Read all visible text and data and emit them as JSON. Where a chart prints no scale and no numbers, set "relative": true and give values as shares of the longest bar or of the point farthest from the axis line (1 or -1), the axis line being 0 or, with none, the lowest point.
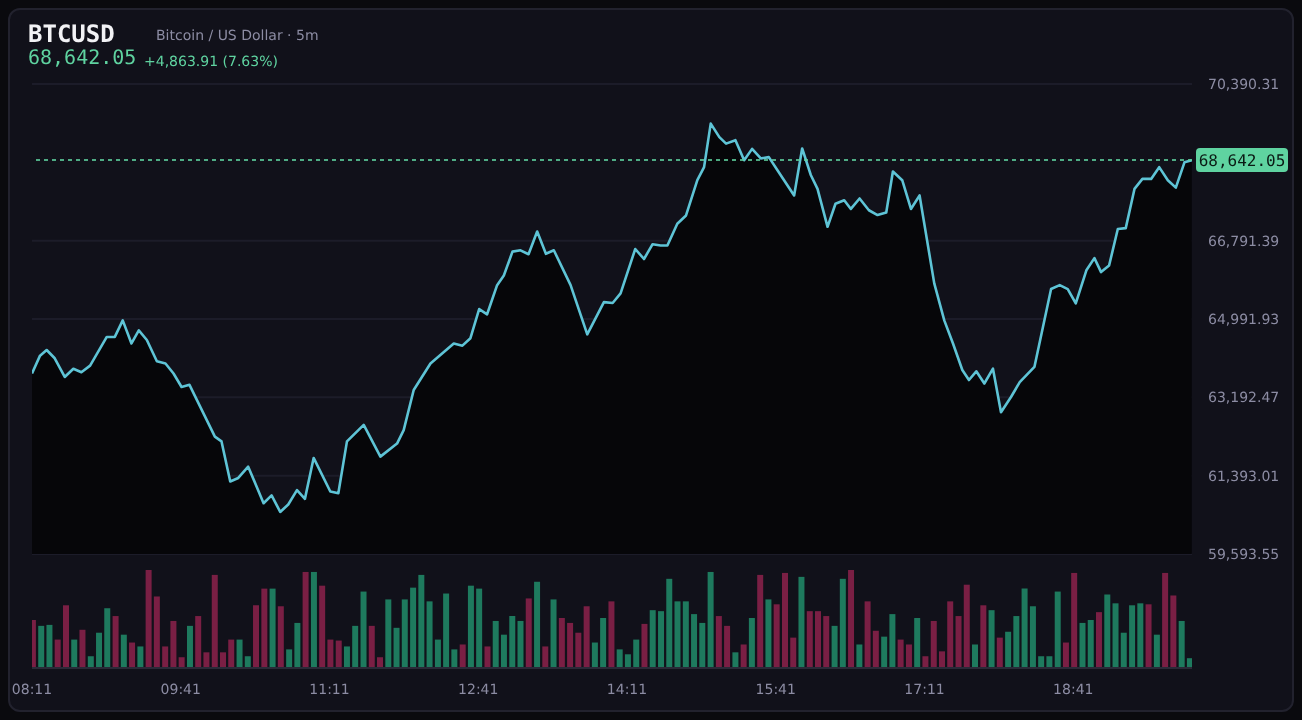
{
  "chart_data": [
    {
      "type": "area",
      "title": "BTCUSD",
      "subtitle": "Bitcoin / US Dollar · 5m",
      "annotations": [
        "68,642.05",
        "+4,863.91 (7.63%)"
      ],
      "x": [
        8.183,
        8.264,
        8.331,
        8.412,
        8.513,
        8.6,
        8.681,
        8.769,
        8.937,
        9.018,
        9.098,
        9.186,
        9.26,
        9.341,
        9.442,
        9.529,
        9.61,
        9.691,
        9.771,
        10.027,
        10.094,
        10.182,
        10.263,
        10.363,
        10.518,
        10.599,
        10.686,
        10.767,
        10.855,
        10.935,
        11.023,
        11.191,
        11.272,
        11.359,
        11.528,
        11.696,
        11.864,
        11.931,
        12.032,
        12.201,
        12.436,
        12.523,
        12.604,
        12.692,
        12.772,
        12.873,
        12.941,
        13.028,
        13.109,
        13.19,
        13.277,
        13.365,
        13.445,
        13.614,
        13.782,
        13.95,
        14.038,
        14.118,
        14.266,
        14.354,
        14.441,
        14.522,
        14.59,
        14.69,
        14.778,
        14.892,
        14.96,
        15.027,
        15.114,
        15.182,
        15.276,
        15.364,
        15.444,
        15.532,
        15.613,
        15.7,
        15.868,
        15.949,
        16.036,
        16.104,
        16.205,
        16.285,
        16.373,
        16.44,
        16.528,
        16.622,
        16.709,
        16.797,
        16.864,
        16.958,
        17.046,
        17.133,
        17.281,
        17.382,
        17.47,
        17.564,
        17.631,
        17.705,
        17.786,
        17.873,
        17.954,
        18.055,
        18.143,
        18.291,
        18.459,
        18.546,
        18.627,
        18.708,
        18.815,
        18.896,
        18.963,
        19.044,
        19.132,
        19.212,
        19.3,
        19.38,
        19.468,
        19.549,
        19.636,
        19.717,
        19.804,
        19.878
      ],
      "series": [
        {
          "color": "#5ec4d6",
          "values": [
            63740,
            64150,
            64280,
            64090,
            63660,
            63850,
            63770,
            63920,
            64580,
            64580,
            64960,
            64430,
            64730,
            64510,
            64020,
            63970,
            63740,
            63430,
            63480,
            62290,
            62180,
            61260,
            61340,
            61600,
            60760,
            60940,
            60560,
            60730,
            61060,
            60860,
            61800,
            61030,
            60990,
            62180,
            62560,
            61830,
            62130,
            62440,
            63360,
            63970,
            64430,
            64380,
            64550,
            65220,
            65100,
            65770,
            65990,
            66540,
            66570,
            66480,
            67000,
            66490,
            66570,
            65770,
            64640,
            65380,
            65360,
            65580,
            66600,
            66370,
            66710,
            66680,
            66680,
            67180,
            67370,
            68180,
            68480,
            69480,
            69170,
            69020,
            69100,
            68640,
            68900,
            68680,
            68710,
            68410,
            67830,
            68910,
            68300,
            67980,
            67110,
            67640,
            67720,
            67520,
            67760,
            67490,
            67380,
            67440,
            68380,
            68180,
            67520,
            67830,
            65810,
            64960,
            64430,
            63820,
            63590,
            63790,
            63510,
            63850,
            62850,
            63200,
            63540,
            63890,
            65680,
            65770,
            65680,
            65350,
            66110,
            66390,
            66070,
            66220,
            67060,
            67080,
            67980,
            68210,
            68210,
            68480,
            68180,
            68010,
            68590,
            68640
          ]
        }
      ],
      "xlim": [
        8.183,
        19.88
      ],
      "ylim": [
        59593.55,
        70390.31
      ],
      "yticks": [
        {
          "value": 59593.55,
          "label": "59,593.55"
        },
        {
          "value": 61393.01,
          "label": "61,393.01"
        },
        {
          "value": 63192.47,
          "label": "63,192.47"
        },
        {
          "value": 64991.93,
          "label": "64,991.93"
        },
        {
          "value": 66791.39,
          "label": "66,791.39"
        },
        {
          "value": 70390.31,
          "label": "70,390.31"
        }
      ],
      "ref_lines": [
        {
          "axis": "y",
          "value": 68642.05,
          "label": "68,642.05",
          "color": "#5fd3a0",
          "line_style": "dotted"
        }
      ],
      "grid": "y",
      "tick_labels": "y",
      "marker": "none"
    },
    {
      "type": "bar",
      "relative": true,
      "tick_labels": "x",
      "x": [
        8.183,
        8.267,
        8.35,
        8.433,
        8.517,
        8.6,
        8.683,
        8.767,
        8.85,
        8.933,
        9.017,
        9.1,
        9.183,
        9.267,
        9.35,
        9.433,
        9.517,
        9.6,
        9.683,
        9.767,
        9.85,
        9.933,
        10.017,
        10.1,
        10.183,
        10.267,
        10.35,
        10.433,
        10.517,
        10.6,
        10.683,
        10.767,
        10.85,
        10.933,
        11.017,
        11.1,
        11.183,
        11.267,
        11.35,
        11.433,
        11.517,
        11.6,
        11.683,
        11.767,
        11.85,
        11.933,
        12.017,
        12.1,
        12.183,
        12.267,
        12.35,
        12.433,
        12.517,
        12.6,
        12.683,
        12.767,
        12.85,
        12.933,
        13.017,
        13.1,
        13.183,
        13.267,
        13.35,
        13.433,
        13.517,
        13.6,
        13.683,
        13.767,
        13.85,
        13.933,
        14.017,
        14.1,
        14.183,
        14.267,
        14.35,
        14.433,
        14.517,
        14.6,
        14.683,
        14.767,
        14.85,
        14.933,
        15.017,
        15.1,
        15.183,
        15.267,
        15.35,
        15.433,
        15.517,
        15.6,
        15.683,
        15.767,
        15.85,
        15.933,
        16.017,
        16.1,
        16.183,
        16.267,
        16.35,
        16.433,
        16.517,
        16.6,
        16.683,
        16.767,
        16.85,
        16.933,
        17.017,
        17.1,
        17.183,
        17.267,
        17.35,
        17.433,
        17.517,
        17.6,
        17.683,
        17.767,
        17.85,
        17.933,
        18.017,
        18.1,
        18.183,
        18.267,
        18.35,
        18.433,
        18.517,
        18.6,
        18.683,
        18.767,
        18.85,
        18.933,
        19.017,
        19.1,
        19.183,
        19.267,
        19.35,
        19.433,
        19.517,
        19.6,
        19.683,
        19.767,
        19.85
      ],
      "values": [
        0.49,
        0.43,
        0.44,
        0.29,
        0.64,
        0.29,
        0.39,
        0.12,
        0.36,
        0.61,
        0.53,
        0.34,
        0.26,
        0.22,
        1,
        0.73,
        0.22,
        0.48,
        0.11,
        0.43,
        0.53,
        0.16,
        0.95,
        0.16,
        0.29,
        0.29,
        0.12,
        0.64,
        0.81,
        0.81,
        0.63,
        0.19,
        0.46,
        0.98,
        0.98,
        0.84,
        0.29,
        0.28,
        0.22,
        0.43,
        0.78,
        0.43,
        0.11,
        0.7,
        0.41,
        0.7,
        0.82,
        0.95,
        0.68,
        0.29,
        0.76,
        0.19,
        0.24,
        0.84,
        0.81,
        0.22,
        0.48,
        0.34,
        0.53,
        0.48,
        0.71,
        0.88,
        0.22,
        0.7,
        0.51,
        0.46,
        0.36,
        0.63,
        0.26,
        0.51,
        0.68,
        0.19,
        0.14,
        0.29,
        0.45,
        0.59,
        0.58,
        0.91,
        0.68,
        0.68,
        0.55,
        0.46,
        0.98,
        0.53,
        0.43,
        0.16,
        0.24,
        0.51,
        0.95,
        0.7,
        0.65,
        0.97,
        0.31,
        0.93,
        0.58,
        0.58,
        0.53,
        0.43,
        0.91,
        1,
        0.24,
        0.68,
        0.38,
        0.32,
        0.55,
        0.29,
        0.24,
        0.51,
        0.12,
        0.48,
        0.17,
        0.68,
        0.53,
        0.85,
        0.24,
        0.64,
        0.59,
        0.31,
        0.37,
        0.53,
        0.81,
        0.63,
        0.12,
        0.12,
        0.78,
        0.26,
        0.97,
        0.46,
        0.49,
        0.57,
        0.75,
        0.66,
        0.36,
        0.64,
        0.66,
        0.65,
        0.34,
        0.97,
        0.74,
        0.48,
        0.1
      ],
      "colors": [
        "#7a1f44",
        "#1e7a5e",
        "#1e7a5e",
        "#7a1f44",
        "#7a1f44",
        "#1e7a5e",
        "#7a1f44",
        "#1e7a5e",
        "#1e7a5e",
        "#1e7a5e",
        "#7a1f44",
        "#1e7a5e",
        "#7a1f44",
        "#1e7a5e",
        "#7a1f44",
        "#7a1f44",
        "#7a1f44",
        "#7a1f44",
        "#7a1f44",
        "#1e7a5e",
        "#7a1f44",
        "#7a1f44",
        "#7a1f44",
        "#7a1f44",
        "#7a1f44",
        "#1e7a5e",
        "#1e7a5e",
        "#7a1f44",
        "#7a1f44",
        "#1e7a5e",
        "#7a1f44",
        "#1e7a5e",
        "#1e7a5e",
        "#7a1f44",
        "#1e7a5e",
        "#7a1f44",
        "#7a1f44",
        "#7a1f44",
        "#1e7a5e",
        "#1e7a5e",
        "#1e7a5e",
        "#7a1f44",
        "#7a1f44",
        "#1e7a5e",
        "#1e7a5e",
        "#1e7a5e",
        "#1e7a5e",
        "#1e7a5e",
        "#1e7a5e",
        "#1e7a5e",
        "#1e7a5e",
        "#1e7a5e",
        "#7a1f44",
        "#1e7a5e",
        "#1e7a5e",
        "#7a1f44",
        "#1e7a5e",
        "#1e7a5e",
        "#1e7a5e",
        "#1e7a5e",
        "#7a1f44",
        "#1e7a5e",
        "#7a1f44",
        "#1e7a5e",
        "#7a1f44",
        "#7a1f44",
        "#7a1f44",
        "#7a1f44",
        "#1e7a5e",
        "#1e7a5e",
        "#7a1f44",
        "#1e7a5e",
        "#1e7a5e",
        "#1e7a5e",
        "#7a1f44",
        "#1e7a5e",
        "#1e7a5e",
        "#1e7a5e",
        "#1e7a5e",
        "#1e7a5e",
        "#1e7a5e",
        "#1e7a5e",
        "#1e7a5e",
        "#7a1f44",
        "#7a1f44",
        "#1e7a5e",
        "#7a1f44",
        "#1e7a5e",
        "#7a1f44",
        "#1e7a5e",
        "#7a1f44",
        "#7a1f44",
        "#7a1f44",
        "#1e7a5e",
        "#7a1f44",
        "#7a1f44",
        "#7a1f44",
        "#1e7a5e",
        "#1e7a5e",
        "#7a1f44",
        "#1e7a5e",
        "#7a1f44",
        "#7a1f44",
        "#1e7a5e",
        "#1e7a5e",
        "#7a1f44",
        "#7a1f44",
        "#1e7a5e",
        "#7a1f44",
        "#7a1f44",
        "#7a1f44",
        "#7a1f44",
        "#7a1f44",
        "#7a1f44",
        "#1e7a5e",
        "#7a1f44",
        "#1e7a5e",
        "#7a1f44",
        "#1e7a5e",
        "#1e7a5e",
        "#1e7a5e",
        "#1e7a5e",
        "#1e7a5e",
        "#1e7a5e",
        "#1e7a5e",
        "#7a1f44",
        "#7a1f44",
        "#1e7a5e",
        "#1e7a5e",
        "#7a1f44",
        "#1e7a5e",
        "#1e7a5e",
        "#1e7a5e",
        "#1e7a5e",
        "#1e7a5e",
        "#7a1f44",
        "#1e7a5e",
        "#7a1f44",
        "#7a1f44",
        "#1e7a5e",
        "#1e7a5e"
      ],
      "xlim": [
        8.183,
        19.88
      ],
      "xticks": [
        {
          "value": 8.183,
          "label": "08:11"
        },
        {
          "value": 9.683,
          "label": "09:41"
        },
        {
          "value": 11.183,
          "label": "11:11"
        },
        {
          "value": 12.683,
          "label": "12:41"
        },
        {
          "value": 14.183,
          "label": "14:11"
        },
        {
          "value": 15.683,
          "label": "15:41"
        },
        {
          "value": 17.183,
          "label": "17:11"
        },
        {
          "value": 18.683,
          "label": "18:41"
        }
      ]
    }
  ]
}
